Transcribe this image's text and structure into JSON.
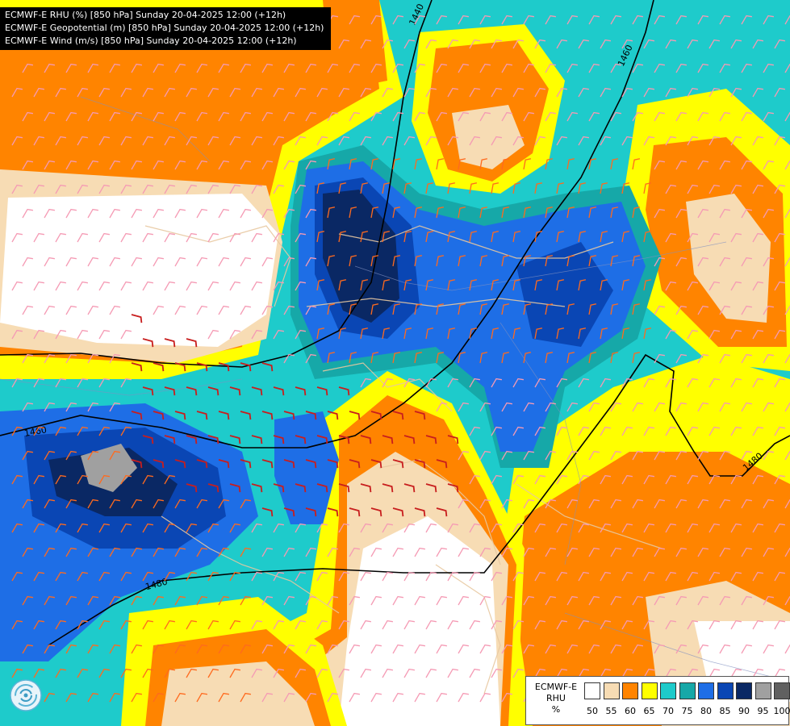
{
  "header": {
    "line1": "ECMWF-E RHU (%) [850 hPa] Sunday 20-04-2025 12:00 (+12h)",
    "line2": "ECMWF-E Geopotential (m) [850 hPa] Sunday 20-04-2025 12:00 (+12h)",
    "line3": "ECMWF-E Wind (m/s) [850 hPa] Sunday 20-04-2025 12:00 (+12h)"
  },
  "legend": {
    "title_model": "ECMWF-E",
    "title_var": "RHU",
    "title_unit": "%",
    "ticks": [
      "50",
      "55",
      "60",
      "65",
      "70",
      "75",
      "80",
      "85",
      "90",
      "95",
      "100"
    ],
    "colors": [
      "#ffffff",
      "#f7dcb4",
      "#ff8400",
      "#ffff00",
      "#1ecbcb",
      "#16a8a8",
      "#1e6ee6",
      "#0a46b4",
      "#0a2864",
      "#a0a0a0",
      "#606060"
    ]
  },
  "contours": {
    "labels": [
      "1440",
      "1460",
      "1460",
      "1480",
      "1480",
      "1480"
    ]
  },
  "colors": {
    "rhu_lt50": "#ffffff",
    "rhu_50_55": "#f7dcb4",
    "rhu_55_60": "#ff8400",
    "rhu_60_65": "#ffff00",
    "rhu_65_70": "#1ecbcb",
    "rhu_70_75": "#16a8a8",
    "rhu_75_80": "#1e6ee6",
    "rhu_80_85": "#0a46b4",
    "rhu_85_90": "#0a2864",
    "rhu_90_95": "#a0a0a0"
  },
  "logo_icon": "ecmwf-swirl-icon"
}
